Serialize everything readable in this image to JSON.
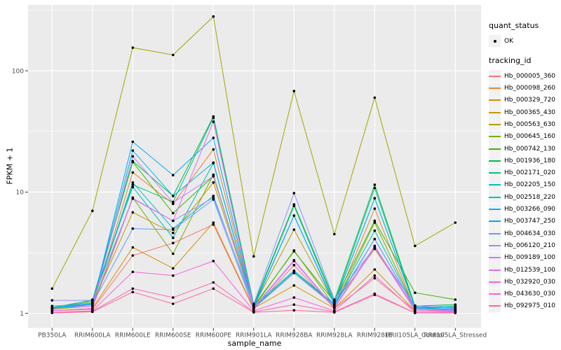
{
  "axes": {
    "x_title": "sample_name",
    "y_title": "FPKM + 1",
    "y_tick_labels": [
      "100",
      "10",
      "1"
    ],
    "y_tick_values": [
      100,
      10,
      1
    ]
  },
  "legend": {
    "quant_status_title": "quant_status",
    "quant_status_items": [
      {
        "label": "OK",
        "symbol": "point",
        "color": "#000000"
      }
    ],
    "tracking_title": "tracking_id"
  },
  "colors": {
    "panel_bg": "#EBEBEB",
    "grid": "#FFFFFF",
    "point": "#000000",
    "axis_text": "#4D4D4D",
    "tick_mark": "#333333",
    "legend_key_bg": "#F2F2F2"
  },
  "chart_data": {
    "type": "line",
    "title": "",
    "xlabel": "sample_name",
    "ylabel": "FPKM + 1",
    "yscale": "log10",
    "ylim": [
      1,
      320
    ],
    "y_major_ticks": [
      1,
      10,
      100
    ],
    "y_minor_ticks": [
      3.1623,
      31.623,
      316.23
    ],
    "grid": "white major+minor on gray panel",
    "legend_position": "right",
    "point_color": "#000000",
    "categories": [
      "PB350LA",
      "RRIM600LA",
      "RRIM600LE",
      "RRIM600SE",
      "RRIM600PE",
      "RRIM901LA",
      "RRIM928BA",
      "RRIM928LA",
      "RRIM928LE",
      "RRII105LA_Control",
      "RRII105LA_Stressed"
    ],
    "series": [
      {
        "name": "Hb_000005_360",
        "color": "#F8766D",
        "values": [
          1.05,
          1.08,
          3.0,
          3.8,
          5.4,
          1.08,
          2.5,
          1.1,
          1.95,
          1.05,
          1.03
        ]
      },
      {
        "name": "Hb_000098_260",
        "color": "#EA8331",
        "values": [
          1.1,
          1.15,
          14.5,
          8.0,
          22.5,
          1.12,
          2.2,
          1.15,
          7.3,
          1.08,
          1.05
        ]
      },
      {
        "name": "Hb_000329_720",
        "color": "#D89000",
        "values": [
          1.05,
          1.1,
          3.5,
          2.35,
          5.6,
          1.1,
          1.7,
          1.1,
          2.3,
          1.05,
          1.04
        ]
      },
      {
        "name": "Hb_000365_430",
        "color": "#C09B00",
        "values": [
          1.1,
          1.2,
          6.8,
          4.6,
          12.0,
          1.15,
          4.9,
          1.2,
          3.4,
          1.1,
          1.08
        ]
      },
      {
        "name": "Hb_000563_630",
        "color": "#A3A500",
        "values": [
          1.6,
          7.0,
          155,
          135,
          280,
          2.95,
          68,
          4.5,
          60,
          3.6,
          5.6
        ]
      },
      {
        "name": "Hb_000645_160",
        "color": "#7CAE00",
        "values": [
          1.08,
          1.15,
          9.0,
          3.1,
          13.9,
          1.12,
          3.3,
          1.15,
          5.6,
          1.1,
          1.12
        ]
      },
      {
        "name": "Hb_000742_130",
        "color": "#39B600",
        "values": [
          1.1,
          1.25,
          17.7,
          6.7,
          13.5,
          1.15,
          3.25,
          1.25,
          5.8,
          1.48,
          1.3
        ]
      },
      {
        "name": "Hb_001936_180",
        "color": "#00BB4E",
        "values": [
          1.12,
          1.28,
          18.0,
          9.3,
          42,
          1.18,
          7.9,
          1.28,
          11.5,
          1.15,
          1.18
        ]
      },
      {
        "name": "Hb_002171_020",
        "color": "#00C087",
        "values": [
          1.1,
          1.2,
          11.5,
          8.3,
          41,
          1.15,
          7.7,
          1.22,
          10.8,
          1.12,
          1.15
        ]
      },
      {
        "name": "Hb_002205_150",
        "color": "#00C0B8",
        "values": [
          1.08,
          1.3,
          11.0,
          4.2,
          17.3,
          1.12,
          2.2,
          1.18,
          4.8,
          1.1,
          1.12
        ]
      },
      {
        "name": "Hb_002518_220",
        "color": "#00BCD8",
        "values": [
          1.1,
          1.22,
          12.0,
          5.0,
          9.3,
          1.15,
          2.25,
          1.2,
          8.9,
          1.13,
          1.14
        ]
      },
      {
        "name": "Hb_003266_090",
        "color": "#00B4F0",
        "values": [
          1.12,
          1.2,
          22,
          9.3,
          17.5,
          1.14,
          6.4,
          1.2,
          8.9,
          1.13,
          1.1
        ]
      },
      {
        "name": "Hb_003747_250",
        "color": "#00A6FF",
        "values": [
          1.1,
          1.18,
          26,
          13.8,
          28,
          1.12,
          6.4,
          1.18,
          4.1,
          1.1,
          1.08
        ]
      },
      {
        "name": "Hb_004634_030",
        "color": "#619CFF",
        "values": [
          1.15,
          1.2,
          5.0,
          4.9,
          8.7,
          1.1,
          2.15,
          1.15,
          4.1,
          1.1,
          1.06
        ]
      },
      {
        "name": "Hb_006120_210",
        "color": "#9590FF",
        "values": [
          1.28,
          1.28,
          8.8,
          5.8,
          9.0,
          1.2,
          9.8,
          1.3,
          3.5,
          1.16,
          1.1
        ]
      },
      {
        "name": "Hb_009189_100",
        "color": "#C77CFF",
        "values": [
          1.1,
          1.15,
          19.7,
          8.2,
          13.5,
          1.12,
          2.74,
          1.12,
          3.6,
          1.08,
          1.05
        ]
      },
      {
        "name": "Hb_012539_100",
        "color": "#E76BF3",
        "values": [
          1.05,
          1.1,
          8.9,
          5.8,
          38,
          1.1,
          2.7,
          1.1,
          3.5,
          1.05,
          1.04
        ]
      },
      {
        "name": "Hb_032920_030",
        "color": "#FA62DB",
        "values": [
          1.02,
          1.05,
          2.2,
          2.05,
          2.7,
          1.05,
          1.35,
          1.05,
          2.05,
          1.02,
          1.02
        ]
      },
      {
        "name": "Hb_043630_030",
        "color": "#FF62BC",
        "values": [
          1.02,
          1.04,
          1.6,
          1.35,
          1.8,
          1.03,
          1.18,
          1.03,
          1.45,
          1.01,
          1.01
        ]
      },
      {
        "name": "Hb_092975_010",
        "color": "#FF6A98",
        "values": [
          1.01,
          1.03,
          1.5,
          1.2,
          1.6,
          1.02,
          1.06,
          1.02,
          1.42,
          1.01,
          1.01
        ]
      }
    ]
  }
}
